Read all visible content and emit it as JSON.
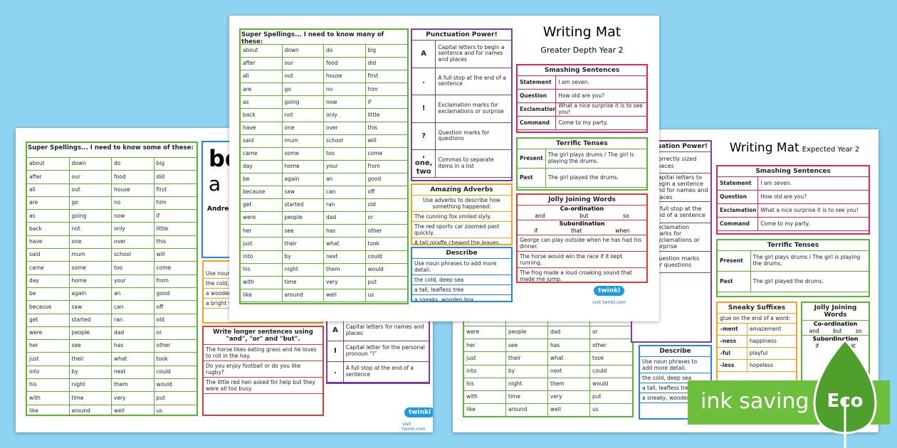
{
  "center_mat": {
    "spellings": {
      "title": "Super Spellings... I need to know many of these:",
      "words": [
        [
          "about",
          "down",
          "do",
          "big"
        ],
        [
          "after",
          "our",
          "food",
          "did"
        ],
        [
          "all",
          "out",
          "house",
          "first"
        ],
        [
          "are",
          "go",
          "no",
          "him"
        ],
        [
          "as",
          "going",
          "now",
          "if"
        ],
        [
          "back",
          "not",
          "only",
          "little"
        ],
        [
          "have",
          "one",
          "over",
          "this"
        ],
        [
          "said",
          "mum",
          "school",
          "will"
        ],
        [
          "came",
          "some",
          "too",
          "come"
        ],
        [
          "day",
          "home",
          "your",
          "from"
        ],
        [
          "be",
          "again",
          "an",
          "good"
        ],
        [
          "because",
          "saw",
          "can",
          "off"
        ],
        [
          "get",
          "started",
          "ran",
          "old"
        ],
        [
          "were",
          "people",
          "dad",
          "or"
        ],
        [
          "her",
          "see",
          "has",
          "other"
        ],
        [
          "just",
          "their",
          "what",
          "took"
        ],
        [
          "into",
          "by",
          "next",
          "could"
        ],
        [
          "his",
          "night",
          "them",
          "would"
        ],
        [
          "with",
          "time",
          "very",
          "put"
        ],
        [
          "like",
          "around",
          "well",
          "us"
        ]
      ]
    },
    "title": "Writing Mat",
    "subtitle": "Greater Depth Year 2",
    "punctuation": {
      "title": "Punctuation Power!",
      "rows": [
        [
          "A",
          "Capital letters to begin a sentence and for names and places"
        ],
        [
          ".",
          "A full stop at the end of a sentence"
        ],
        [
          "!",
          "Exclamation marks for exclamations or surprise"
        ],
        [
          "?",
          "Question marks for questions"
        ],
        [
          ",\none, two",
          "Commas to separate items in a list"
        ]
      ]
    },
    "adverbs": {
      "title": "Amazing Adverbs",
      "intro": "Use adverbs to describe how something happened:",
      "examples": [
        "The cunning fox smiled slyly.",
        "The red sports car zoomed past quickly.",
        "A tall giraffe chewed the leaves hungrily."
      ]
    },
    "describe": {
      "title": "Describe",
      "intro": "Use noun phrases to add more detail.",
      "examples": [
        "the cold, deep sea",
        "a tall, leafless tree",
        "a sneaky, wooden box"
      ]
    },
    "sentences": {
      "title": "Smashing Sentences",
      "rows": [
        [
          "Statement",
          "I am seven."
        ],
        [
          "Question",
          "How old are you?"
        ],
        [
          "Exclamation",
          "What a nice surprise it is to see you!"
        ],
        [
          "Command",
          "Come to my party."
        ]
      ]
    },
    "tenses": {
      "title": "Terrific Tenses",
      "rows": [
        [
          "Present",
          "The girl plays drums / The girl is playing the drums."
        ],
        [
          "Past",
          "The girl played the drums."
        ]
      ]
    },
    "joining": {
      "title": "Jolly Joining Words",
      "coordination": "Co-ordination",
      "coordination_words": [
        "and",
        "but",
        "so"
      ],
      "subordination": "Subordination",
      "subordination_words": [
        "if",
        "that",
        "when"
      ],
      "examples": [
        "George can play outside when he has had his dinner.",
        "The horse would win the race if it kept running.",
        "The frog made a loud croaking sound that made me jump."
      ]
    },
    "logo": "twinkl",
    "url": "visit twinkl.com"
  },
  "left_mat": {
    "spellings_title": "Super Spellings... I need to know some of these:",
    "letters": [
      "bd",
      "a"
    ],
    "name": "Andrea",
    "describe_lines": [
      "Use noun phrases to add more detail.",
      "the cold, deep sea",
      "a wooden box",
      "a bright yellow shelter"
    ],
    "longer": {
      "title": "Write longer sentences using \"and\", \"or\" and \"but\".",
      "examples": [
        "The horse likes eating grass and he loves to roll in the hay.",
        "Do you enjoy football or do you like rugby?",
        "The little red hen asked for help but they were all too busy."
      ]
    },
    "punctuation_rows": [
      [
        "A",
        "Capital letters for names and places"
      ],
      [
        "I",
        "Capital letter for the personal pronoun “I”"
      ],
      [
        ".",
        "A full stop at the end of a sentence"
      ]
    ],
    "logo": "twinkl",
    "url": "visit twinkl.com"
  },
  "right_mat": {
    "title": "Writing Mat",
    "subtitle": "Expected Year 2",
    "punctuation": {
      "title": "Punctuation Power!",
      "rows": [
        "Correctly sized spaces",
        "Capital letters to begin a sentence and for names and places",
        "A full stop at the end of a sentence",
        "Exclamation marks for exclamations or surprise",
        "Question marks for questions"
      ],
      "question_symbol": "?"
    },
    "sentences": {
      "title": "Smashing Sentences",
      "rows": [
        [
          "Statement",
          "I am seven."
        ],
        [
          "Question",
          "How old are you?"
        ],
        [
          "Exclamation",
          "What a nice surprise it is to see you!"
        ],
        [
          "Command",
          "Come to my party."
        ]
      ]
    },
    "tenses": {
      "title": "Terrific Tenses",
      "rows": [
        [
          "Present",
          "The girl plays drums / The girl is playing the drums."
        ],
        [
          "Past",
          "The girl played the drums."
        ]
      ]
    },
    "suffixes": {
      "title": "Sneaky Suffixes",
      "intro": "glue on the end of a word:",
      "rows": [
        [
          "–ment",
          "amazement"
        ],
        [
          "–ness",
          "happiness"
        ],
        [
          "–ful",
          "playful"
        ],
        [
          "–less",
          "hopeless"
        ]
      ]
    },
    "joining": {
      "title": "Jolly Joining Words",
      "coordination": "Co-ordination",
      "coordination_words": [
        "and",
        "but",
        "so"
      ],
      "subordination": "Subordination",
      "subordination_words": [
        "if",
        "that"
      ]
    },
    "describe": {
      "title": "Describe",
      "intro": "Use noun phrases to add more detail.",
      "examples": [
        "the cold, deep sea",
        "a tall, leafless tree",
        "a sneaky, wooden box"
      ]
    }
  },
  "badge": {
    "text": "ink saving",
    "label": "Eco"
  }
}
